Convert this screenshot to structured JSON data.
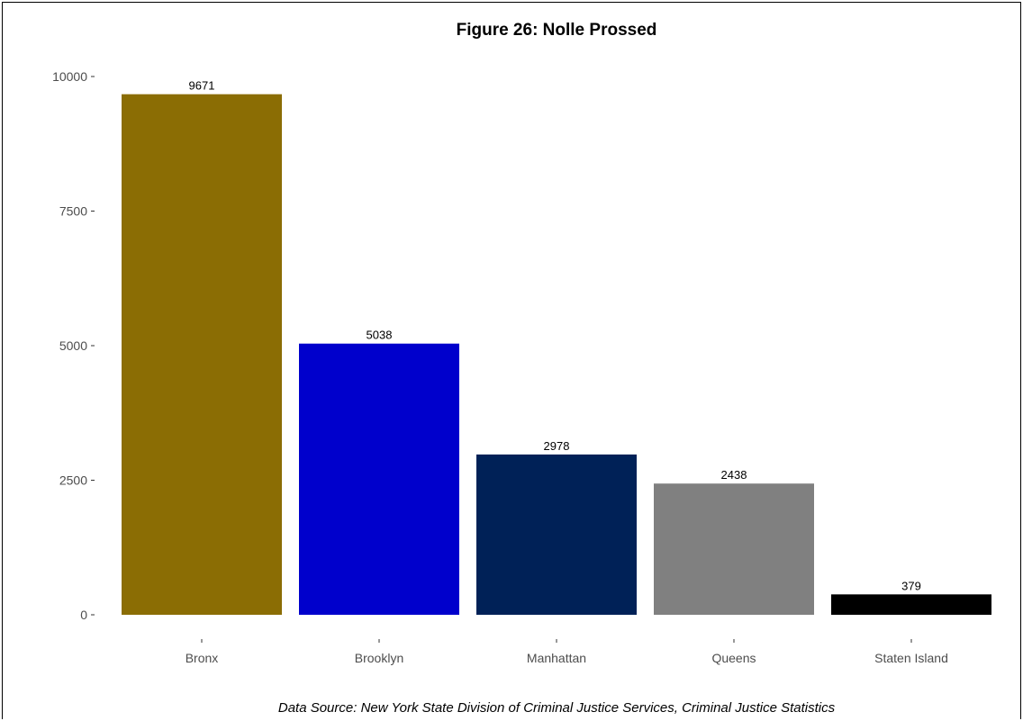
{
  "chart_data": {
    "type": "bar",
    "title": "Figure 26: Nolle Prossed",
    "caption": "Data Source: New York State Division of Criminal Justice Services, Criminal Justice Statistics",
    "xlabel": "",
    "ylabel": "",
    "categories": [
      "Bronx",
      "Brooklyn",
      "Manhattan",
      "Queens",
      "Staten Island"
    ],
    "values": [
      9671,
      5038,
      2978,
      2438,
      379
    ],
    "value_labels": [
      "9671",
      "5038",
      "2978",
      "2438",
      "379"
    ],
    "colors": [
      "#8b6d04",
      "#0000cc",
      "#002157",
      "#808080",
      "#000000"
    ],
    "yticks": [
      0,
      2500,
      5000,
      7500,
      10000
    ],
    "ytick_labels": [
      "0",
      "2500",
      "5000",
      "7500",
      "10000"
    ],
    "ylim": [
      0,
      10000
    ],
    "grid": false,
    "legend": "none"
  }
}
